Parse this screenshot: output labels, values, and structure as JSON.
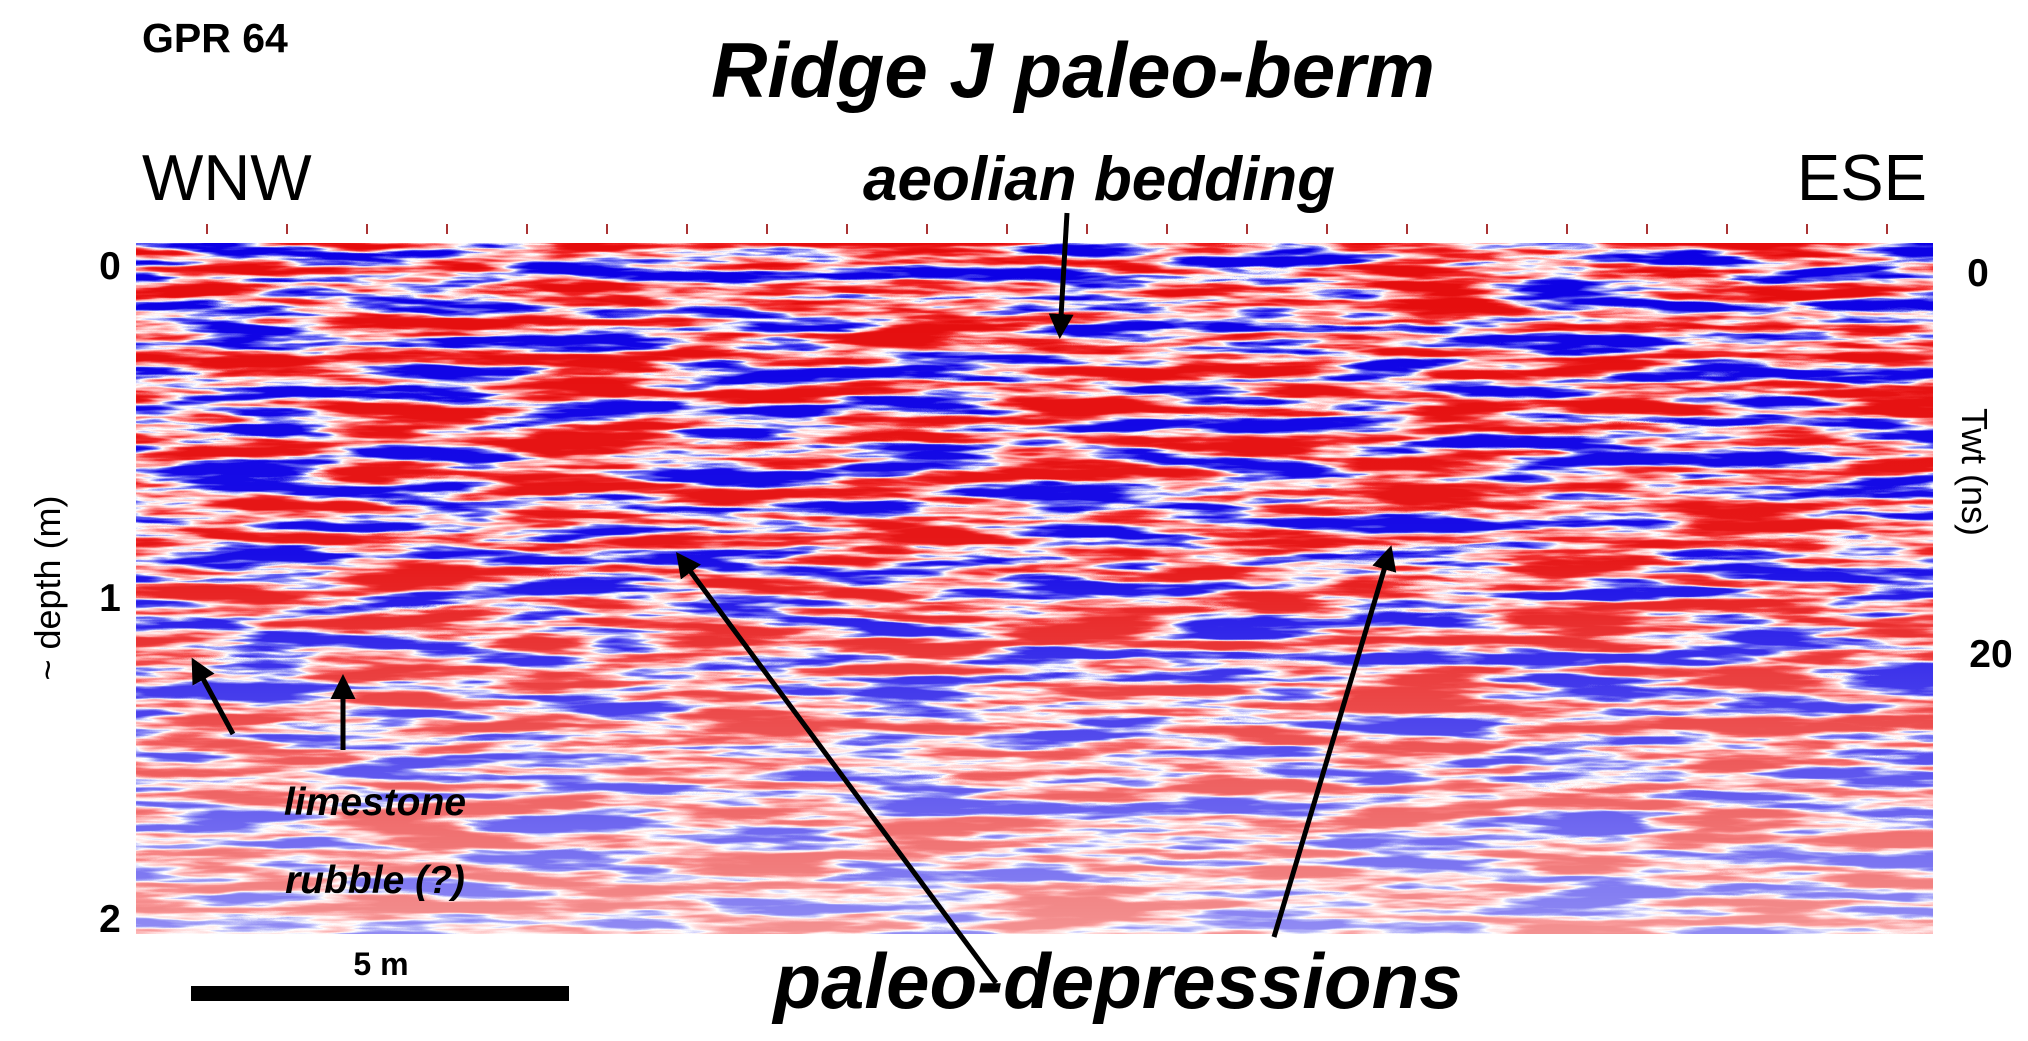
{
  "header": {
    "id": "GPR 64",
    "title": "Ridge J paleo-berm"
  },
  "directions": {
    "left": "WNW",
    "right": "ESE"
  },
  "left_axis": {
    "label": "~ depth (m)",
    "ticks": [
      "0",
      "1",
      "2"
    ]
  },
  "right_axis": {
    "label": "Twt (ns)",
    "ticks": [
      "0",
      "20"
    ]
  },
  "annotations": {
    "top": "aeolian bedding",
    "rubble": [
      "limestone",
      "rubble (?)"
    ],
    "bottom": "paleo-depressions"
  },
  "scale_bar": "5 m"
}
